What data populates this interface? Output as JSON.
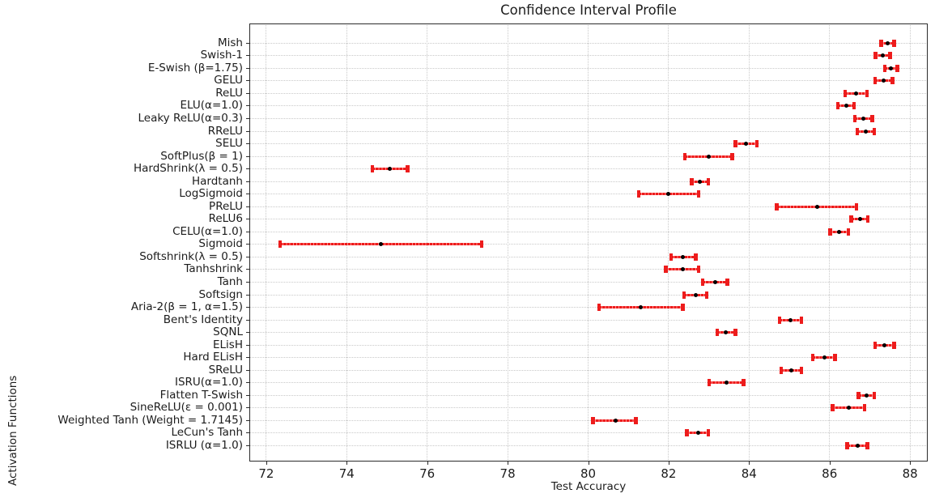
{
  "chart_data": {
    "type": "scatter",
    "subtype": "horizontal_confidence_interval_errorbars",
    "title": "Confidence Interval Profile",
    "xlabel": "Test Accuracy",
    "ylabel": "Activation Functions",
    "xlim": [
      71.58,
      88.44
    ],
    "xticks": [
      72,
      74,
      76,
      78,
      80,
      82,
      84,
      86,
      88
    ],
    "grid": true,
    "legend": "none",
    "categories": [
      "Mish",
      "Swish-1",
      "E-Swish (β=1.75)",
      "GELU",
      "ReLU",
      "ELU(α=1.0)",
      "Leaky ReLU(α=0.3)",
      "RReLU",
      "SELU",
      "SoftPlus(β = 1)",
      "HardShrink(λ = 0.5)",
      "Hardtanh",
      "LogSigmoid",
      "PReLU",
      "ReLU6",
      "CELU(α=1.0)",
      "Sigmoid",
      "Softshrink(λ = 0.5)",
      "Tanhshrink",
      "Tanh",
      "Softsign",
      "Aria-2(β = 1, α=1.5)",
      "Bent's Identity",
      "SQNL",
      "ELisH",
      "Hard ELisH",
      "SReLU",
      "ISRU(α=1.0)",
      "Flatten T-Swish",
      "SineReLU(ε = 0.001)",
      "Weighted Tanh (Weight = 1.7145)",
      "LeCun's Tanh",
      "ISRLU (α=1.0)"
    ],
    "series": [
      {
        "name": "mean",
        "values": [
          87.45,
          87.32,
          87.52,
          87.35,
          86.66,
          86.41,
          86.85,
          86.9,
          83.93,
          83.0,
          75.07,
          82.78,
          82.0,
          85.69,
          86.76,
          86.24,
          74.84,
          82.35,
          82.35,
          83.15,
          82.67,
          81.31,
          85.03,
          83.42,
          87.37,
          85.88,
          85.05,
          83.45,
          86.92,
          86.47,
          80.69,
          82.73,
          86.69
        ]
      },
      {
        "name": "ci_lower",
        "values": [
          87.28,
          87.14,
          87.37,
          87.13,
          86.39,
          86.21,
          86.63,
          86.69,
          83.66,
          82.4,
          74.64,
          82.57,
          81.26,
          84.69,
          86.54,
          86.01,
          72.34,
          82.06,
          81.93,
          82.85,
          82.38,
          80.27,
          84.76,
          83.21,
          87.13,
          85.58,
          84.8,
          83.01,
          86.72,
          86.07,
          80.12,
          82.45,
          86.44
        ]
      },
      {
        "name": "ci_upper",
        "values": [
          87.6,
          87.5,
          87.68,
          87.56,
          86.93,
          86.61,
          87.06,
          87.11,
          84.19,
          83.58,
          75.51,
          82.99,
          82.75,
          86.67,
          86.95,
          86.47,
          77.35,
          82.67,
          82.75,
          83.46,
          82.95,
          82.35,
          85.3,
          83.66,
          87.6,
          86.14,
          85.3,
          83.86,
          87.11,
          86.87,
          81.19,
          82.99,
          86.94
        ]
      }
    ],
    "colors": {
      "error_bar": "#ed1c1c",
      "error_bar_light": "#ff8a8a",
      "marker": "#000000",
      "grid": "#c9c9c9",
      "spine": "#2b2b2b",
      "text": "#1c1c1c",
      "background": "#ffffff"
    }
  }
}
